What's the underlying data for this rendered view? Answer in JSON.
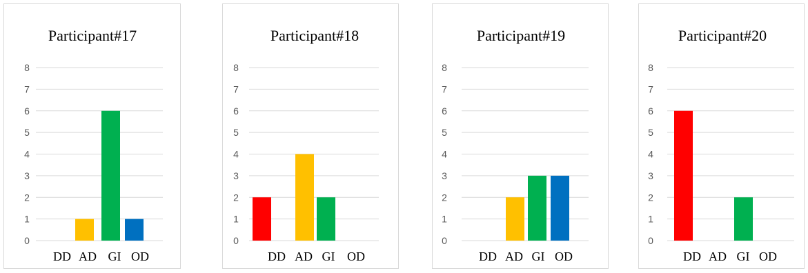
{
  "colors": {
    "DD": "#ff0000",
    "AD": "#ffc000",
    "GI": "#00b050",
    "OD": "#0070c0"
  },
  "chart_data": [
    {
      "type": "bar",
      "title": "Participant#17",
      "categories": [
        "DD",
        "AD",
        "GI",
        "OD"
      ],
      "values": [
        0,
        1,
        6,
        1
      ],
      "ylim": [
        0,
        8
      ],
      "yticks": [
        "0",
        "1",
        "2",
        "3",
        "4",
        "5",
        "6",
        "7",
        "8"
      ],
      "grid": true,
      "legend": "none"
    },
    {
      "type": "bar",
      "title": "Participant#18",
      "categories": [
        "DD",
        "AD",
        "GI",
        "OD"
      ],
      "values": [
        2,
        4,
        2,
        0
      ],
      "ylim": [
        0,
        8
      ],
      "yticks": [
        "0",
        "1",
        "2",
        "3",
        "4",
        "5",
        "6",
        "7",
        "8"
      ],
      "grid": true,
      "legend": "none"
    },
    {
      "type": "bar",
      "title": "Participant#19",
      "categories": [
        "DD",
        "AD",
        "GI",
        "OD"
      ],
      "values": [
        0,
        2,
        3,
        3
      ],
      "ylim": [
        0,
        8
      ],
      "yticks": [
        "0",
        "1",
        "2",
        "3",
        "4",
        "5",
        "6",
        "7",
        "8"
      ],
      "grid": true,
      "legend": "none"
    },
    {
      "type": "bar",
      "title": "Participant#20",
      "categories": [
        "DD",
        "AD",
        "GI",
        "OD"
      ],
      "values": [
        6,
        0,
        2,
        0
      ],
      "ylim": [
        0,
        8
      ],
      "yticks": [
        "0",
        "1",
        "2",
        "3",
        "4",
        "5",
        "6",
        "7",
        "8"
      ],
      "grid": true,
      "legend": "none"
    }
  ]
}
